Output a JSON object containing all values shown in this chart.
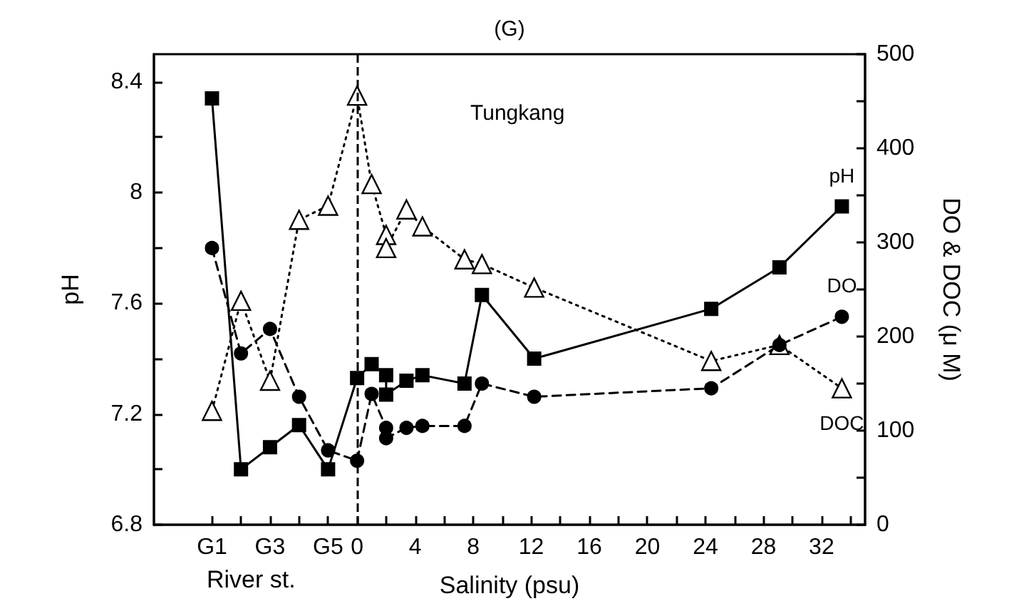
{
  "chart_data": {
    "type": "line",
    "title": "(G)",
    "xlabel": "Salinity (psu)",
    "ylabel": "pH",
    "y2label": "DO & DOC (μ M)",
    "annotations": [
      "Tungkang",
      "River st."
    ],
    "x": [
      -10,
      -8,
      -6,
      -4,
      -2,
      0,
      1,
      2,
      2,
      3.4,
      4.5,
      7.4,
      8.6,
      12.2,
      24.4,
      29.1,
      33.4
    ],
    "series": [
      {
        "name": "pH",
        "color": "#000000",
        "marker": "square",
        "line_style": "solid",
        "values": [
          8.34,
          7.0,
          7.08,
          7.16,
          7.0,
          7.33,
          7.38,
          7.34,
          7.27,
          7.32,
          7.34,
          7.31,
          7.63,
          7.4,
          7.58,
          7.73,
          7.95
        ]
      },
      {
        "name": "DO",
        "color": "#000000",
        "marker": "circle",
        "line_style": "dashed",
        "axis": "y2",
        "values": [
          294,
          182,
          208,
          136,
          79,
          68,
          139,
          103,
          92,
          103,
          105,
          105,
          150,
          136,
          145,
          191,
          221
        ]
      },
      {
        "name": "DOC",
        "color": "#000000",
        "marker": "triangle",
        "line_style": "dotted",
        "axis": "y2",
        "values": [
          121,
          238,
          153,
          324,
          339,
          456,
          362,
          308,
          294,
          335,
          317,
          282,
          277,
          252,
          174,
          191,
          145
        ]
      }
    ],
    "xlim": [
      -14,
      35
    ],
    "xticks": [
      {
        "value": -10,
        "label": "G1"
      },
      {
        "value": -8,
        "label": null
      },
      {
        "value": -6,
        "label": "G3"
      },
      {
        "value": -4,
        "label": null
      },
      {
        "value": -2,
        "label": "G5"
      },
      0,
      {
        "value": 2,
        "label": null
      },
      4,
      {
        "value": 6,
        "label": null
      },
      8,
      {
        "value": 10,
        "label": null
      },
      12,
      {
        "value": 14,
        "label": null
      },
      16,
      {
        "value": 18,
        "label": null
      },
      20,
      {
        "value": 22,
        "label": null
      },
      24,
      {
        "value": 26,
        "label": null
      },
      28,
      {
        "value": 30,
        "label": null
      },
      32,
      {
        "value": 34,
        "label": null
      }
    ],
    "ylim": [
      6.8,
      8.5
    ],
    "yticks": [
      6.8,
      {
        "value": 7.0,
        "label": null
      },
      7.2,
      {
        "value": 7.4,
        "label": null
      },
      7.6,
      {
        "value": 7.8,
        "label": null
      },
      8.0,
      {
        "value": 8.2,
        "label": null
      },
      8.4
    ],
    "y2lim": [
      0,
      500
    ],
    "y2ticks": [
      0,
      {
        "value": 50,
        "label": null
      },
      100,
      {
        "value": 150,
        "label": null
      },
      200,
      {
        "value": 250,
        "label": null
      },
      300,
      {
        "value": 350,
        "label": null
      },
      400,
      {
        "value": 450,
        "label": null
      },
      500
    ],
    "ref_lines": [
      {
        "axis": "x",
        "value": 0,
        "line_style": "dashed",
        "color": "#000000"
      }
    ],
    "grid": false,
    "legend": false
  }
}
